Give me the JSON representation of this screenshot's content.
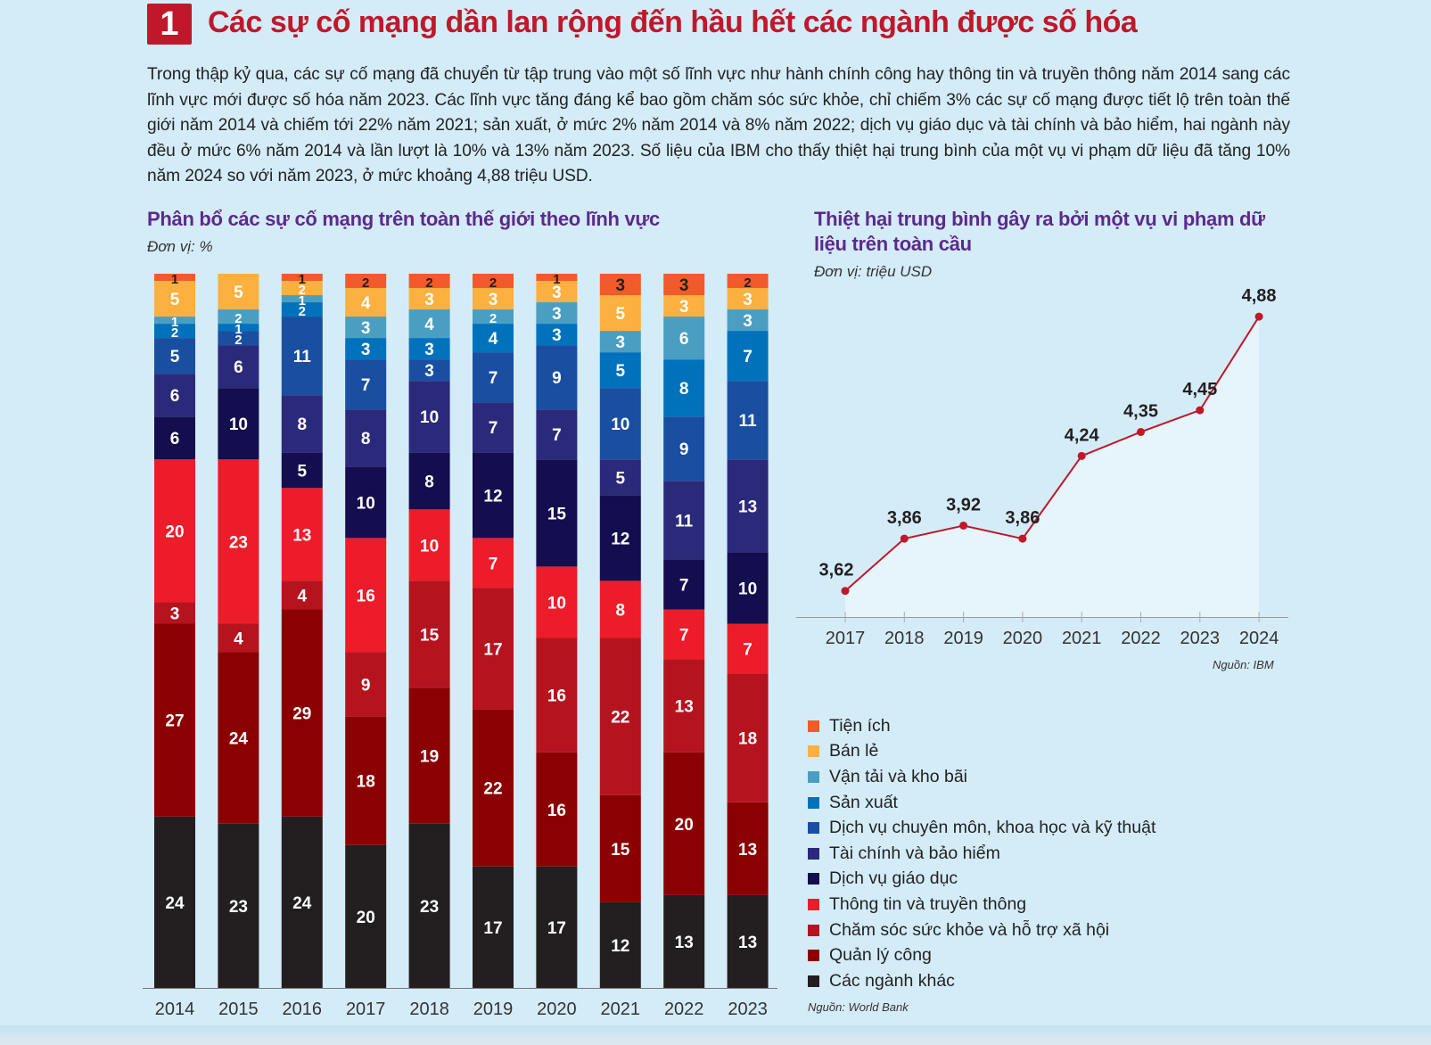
{
  "header": {
    "number": "1",
    "title": "Các sự cố mạng dần lan rộng đến hầu hết các ngành được số hóa"
  },
  "intro": "Trong thập kỷ qua, các sự cố mạng đã chuyển từ tập trung vào một số lĩnh vực như hành chính công hay thông tin và truyền thông năm 2014 sang các lĩnh vực mới được số hóa năm 2023. Các lĩnh vực tăng đáng kể bao gồm chăm sóc sức khỏe, chỉ chiếm 3% các sự cố mạng được tiết lộ trên toàn thế giới năm 2014 và chiếm tới 22% năm 2021; sản xuất, ở mức 2% năm 2014 và 8% năm 2022; dịch vụ giáo dục và tài chính và bảo hiểm, hai ngành này đều ở mức 6% năm 2014 và lần lượt là 10% và 13% năm 2023.  Số liệu của IBM cho thấy thiệt hại trung bình của một vụ vi phạm dữ liệu đã tăng 10% năm 2024 so với năm 2023, ở mức khoảng 4,88 triệu USD.",
  "chart_data": [
    {
      "type": "bar",
      "stacked": true,
      "title": "Phân bổ các sự cố mạng trên toàn thế giới theo lĩnh vực",
      "unit": "Đơn vị: %",
      "source": "Nguồn: World Bank",
      "categories": [
        "2014",
        "2015",
        "2016",
        "2017",
        "2018",
        "2019",
        "2020",
        "2021",
        "2022",
        "2023"
      ],
      "series": [
        {
          "name": "Các ngành khác",
          "color": "#231f20",
          "values": [
            24,
            23,
            24,
            20,
            23,
            17,
            17,
            12,
            13,
            13
          ]
        },
        {
          "name": "Quản lý công",
          "color": "#8b0000",
          "values": [
            27,
            24,
            29,
            18,
            19,
            22,
            16,
            15,
            20,
            13
          ]
        },
        {
          "name": "Chăm sóc sức khỏe và hỗ trợ xã hội",
          "color": "#b5141e",
          "values": [
            3,
            4,
            4,
            9,
            15,
            17,
            16,
            22,
            13,
            18
          ]
        },
        {
          "name": "Thông tin và truyền thông",
          "color": "#ed1c2a",
          "values": [
            20,
            23,
            13,
            16,
            10,
            7,
            10,
            8,
            7,
            7
          ]
        },
        {
          "name": "Dịch vụ giáo dục",
          "color": "#140e4f",
          "values": [
            6,
            10,
            5,
            10,
            8,
            12,
            15,
            12,
            7,
            10
          ]
        },
        {
          "name": "Tài chính và bảo hiểm",
          "color": "#2b2a7a",
          "values": [
            6,
            6,
            8,
            8,
            10,
            7,
            7,
            5,
            11,
            13
          ]
        },
        {
          "name": "Dịch vụ chuyên môn, khoa học và kỹ thuật",
          "color": "#1a4ea0",
          "values": [
            5,
            2,
            11,
            7,
            3,
            7,
            9,
            10,
            9,
            11
          ]
        },
        {
          "name": "Sản xuất",
          "color": "#0072bc",
          "values": [
            2,
            1,
            2,
            3,
            3,
            4,
            3,
            5,
            8,
            7
          ]
        },
        {
          "name": "Vận tải và kho bãi",
          "color": "#4a9ec2",
          "values": [
            1,
            2,
            1,
            3,
            4,
            2,
            3,
            3,
            6,
            3
          ]
        },
        {
          "name": "Bán lẻ",
          "color": "#fbb040",
          "values": [
            5,
            5,
            2,
            4,
            3,
            3,
            3,
            5,
            3,
            3
          ]
        },
        {
          "name": "Tiện ích",
          "color": "#f15a29",
          "values": [
            1,
            0,
            1,
            2,
            2,
            2,
            1,
            3,
            3,
            2
          ]
        }
      ]
    },
    {
      "type": "line",
      "title": "Thiệt hại trung bình gây ra bởi một vụ vi phạm dữ liệu trên toàn cầu",
      "unit": "Đơn vị: triệu USD",
      "source": "Nguồn: IBM",
      "x": [
        "2017",
        "2018",
        "2019",
        "2020",
        "2021",
        "2022",
        "2023",
        "2024"
      ],
      "values": [
        3.62,
        3.86,
        3.92,
        3.86,
        4.24,
        4.35,
        4.45,
        4.88
      ],
      "labels": [
        "3,62",
        "3,86",
        "3,92",
        "3,86",
        "4,24",
        "4,35",
        "4,45",
        "4,88"
      ],
      "ylim": [
        3.5,
        4.95
      ],
      "color": "#c0182a"
    }
  ]
}
